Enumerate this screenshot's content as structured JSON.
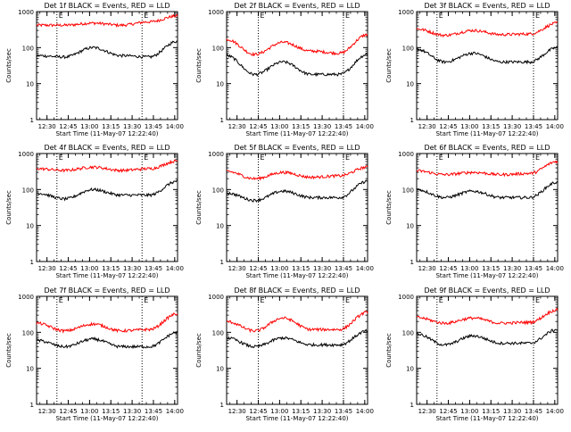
{
  "chart_data": [
    {
      "type": "line",
      "title": "Det 1f BLACK = Events, RED = LLD",
      "xlabel": "Start Time (11-May-07 12:22:40)",
      "ylabel": "Counts/sec",
      "xlim": [
        "12:22:40",
        "14:02"
      ],
      "ylim": [
        1,
        1000
      ],
      "yscale": "log",
      "xticks": [
        "12:30",
        "12:45",
        "13:00",
        "13:15",
        "13:30",
        "13:45",
        "14:00"
      ],
      "yticks": [
        "1",
        "10",
        "100",
        "1000"
      ],
      "marker_label": "E",
      "markers": [
        "12:37",
        "13:37"
      ],
      "series": [
        {
          "color": "#ff0000",
          "shape": [
            420,
            420,
            480,
            420,
            520,
            760
          ]
        },
        {
          "color": "#000000",
          "shape": [
            60,
            55,
            100,
            60,
            55,
            150
          ]
        }
      ]
    },
    {
      "type": "line",
      "title": "Det 2f BLACK = Events, RED = LLD",
      "xlabel": "Start Time (11-May-07 12:22:40)",
      "ylabel": "Counts/sec",
      "xlim": [
        "12:22:40",
        "14:02"
      ],
      "ylim": [
        1,
        1000
      ],
      "yscale": "log",
      "xticks": [
        "12:30",
        "12:45",
        "13:00",
        "13:15",
        "13:30",
        "13:45",
        "14:00"
      ],
      "yticks": [
        "1",
        "10",
        "100",
        "1000"
      ],
      "marker_label": "E",
      "markers": [
        "12:45",
        "13:45"
      ],
      "series": [
        {
          "color": "#ff0000",
          "shape": [
            170,
            65,
            140,
            80,
            70,
            230
          ]
        },
        {
          "color": "#000000",
          "shape": [
            60,
            18,
            40,
            18,
            18,
            65
          ]
        }
      ]
    },
    {
      "type": "line",
      "title": "Det 3f BLACK = Events, RED = LLD",
      "xlabel": "Start Time (11-May-07 12:22:40)",
      "ylabel": "Counts/sec",
      "xlim": [
        "12:22:40",
        "14:02"
      ],
      "ylim": [
        1,
        1000
      ],
      "yscale": "log",
      "xticks": [
        "12:30",
        "12:45",
        "13:00",
        "13:15",
        "13:30",
        "13:45",
        "14:00"
      ],
      "yticks": [
        "1",
        "10",
        "100",
        "1000"
      ],
      "marker_label": "E",
      "markers": [
        "12:37",
        "13:45"
      ],
      "series": [
        {
          "color": "#ff0000",
          "shape": [
            330,
            220,
            300,
            230,
            240,
            480
          ]
        },
        {
          "color": "#000000",
          "shape": [
            90,
            40,
            70,
            40,
            40,
            100
          ]
        }
      ]
    },
    {
      "type": "line",
      "title": "Det 4f BLACK = Events, RED = LLD",
      "xlabel": "Start Time (11-May-07 12:22:40)",
      "ylabel": "Counts/sec",
      "xlim": [
        "12:22:40",
        "14:02"
      ],
      "ylim": [
        1,
        1000
      ],
      "yscale": "log",
      "xticks": [
        "12:30",
        "12:45",
        "13:00",
        "13:15",
        "13:30",
        "13:45",
        "14:00"
      ],
      "yticks": [
        "1",
        "10",
        "100",
        "1000"
      ],
      "marker_label": "E",
      "markers": [
        "12:37",
        "13:37"
      ],
      "series": [
        {
          "color": "#ff0000",
          "shape": [
            380,
            340,
            420,
            340,
            380,
            620
          ]
        },
        {
          "color": "#000000",
          "shape": [
            80,
            55,
            100,
            70,
            70,
            170
          ]
        }
      ]
    },
    {
      "type": "line",
      "title": "Det 5f BLACK = Events, RED = LLD",
      "xlabel": "Start Time (11-May-07 12:22:40)",
      "ylabel": "Counts/sec",
      "xlim": [
        "12:22:40",
        "14:02"
      ],
      "ylim": [
        1,
        1000
      ],
      "yscale": "log",
      "xticks": [
        "12:30",
        "12:45",
        "13:00",
        "13:15",
        "13:30",
        "13:45",
        "14:00"
      ],
      "yticks": [
        "1",
        "10",
        "100",
        "1000"
      ],
      "marker_label": "E",
      "markers": [
        "12:45",
        "13:45"
      ],
      "series": [
        {
          "color": "#ff0000",
          "shape": [
            320,
            200,
            300,
            220,
            240,
            420
          ]
        },
        {
          "color": "#000000",
          "shape": [
            80,
            50,
            90,
            60,
            60,
            170
          ]
        }
      ]
    },
    {
      "type": "line",
      "title": "Det 6f BLACK = Events, RED = LLD",
      "xlabel": "Start Time (11-May-07 12:22:40)",
      "ylabel": "Counts/sec",
      "xlim": [
        "12:22:40",
        "14:02"
      ],
      "ylim": [
        1,
        1000
      ],
      "yscale": "log",
      "xticks": [
        "12:30",
        "12:45",
        "13:00",
        "13:15",
        "13:30",
        "13:45",
        "14:00"
      ],
      "yticks": [
        "1",
        "10",
        "100",
        "1000"
      ],
      "marker_label": "E",
      "markers": [
        "12:37",
        "13:45"
      ],
      "series": [
        {
          "color": "#ff0000",
          "shape": [
            330,
            260,
            300,
            260,
            280,
            600
          ]
        },
        {
          "color": "#000000",
          "shape": [
            100,
            60,
            90,
            60,
            60,
            160
          ]
        }
      ]
    },
    {
      "type": "line",
      "title": "Det 7f BLACK = Events, RED = LLD",
      "xlabel": "Start Time (11-May-07 12:22:40)",
      "ylabel": "Counts/sec",
      "xlim": [
        "12:22:40",
        "14:02"
      ],
      "ylim": [
        1,
        1000
      ],
      "yscale": "log",
      "xticks": [
        "12:30",
        "12:45",
        "13:00",
        "13:15",
        "13:30",
        "13:45",
        "14:00"
      ],
      "yticks": [
        "1",
        "10",
        "100",
        "1000"
      ],
      "marker_label": "E",
      "markers": [
        "12:37",
        "13:37"
      ],
      "series": [
        {
          "color": "#ff0000",
          "shape": [
            180,
            110,
            170,
            110,
            120,
            330
          ]
        },
        {
          "color": "#000000",
          "shape": [
            60,
            40,
            65,
            40,
            40,
            100
          ]
        }
      ]
    },
    {
      "type": "line",
      "title": "Det 8f BLACK = Events, RED = LLD",
      "xlabel": "Start Time (11-May-07 12:22:40)",
      "ylabel": "Counts/sec",
      "xlim": [
        "12:22:40",
        "14:02"
      ],
      "ylim": [
        1,
        1000
      ],
      "yscale": "log",
      "xticks": [
        "12:30",
        "12:45",
        "13:00",
        "13:15",
        "13:30",
        "13:45",
        "14:00"
      ],
      "yticks": [
        "1",
        "10",
        "100",
        "1000"
      ],
      "marker_label": "E",
      "markers": [
        "12:45",
        "13:45"
      ],
      "series": [
        {
          "color": "#ff0000",
          "shape": [
            200,
            110,
            250,
            120,
            120,
            360
          ]
        },
        {
          "color": "#000000",
          "shape": [
            70,
            40,
            70,
            45,
            45,
            110
          ]
        }
      ]
    },
    {
      "type": "line",
      "title": "Det 9f BLACK = Events, RED = LLD",
      "xlabel": "Start Time (11-May-07 12:22:40)",
      "ylabel": "Counts/sec",
      "xlim": [
        "12:22:40",
        "14:02"
      ],
      "ylim": [
        1,
        1000
      ],
      "yscale": "log",
      "xticks": [
        "12:30",
        "12:45",
        "13:00",
        "13:15",
        "13:30",
        "13:45",
        "14:00"
      ],
      "yticks": [
        "1",
        "10",
        "100",
        "1000"
      ],
      "marker_label": "E",
      "markers": [
        "12:37",
        "13:45"
      ],
      "series": [
        {
          "color": "#ff0000",
          "shape": [
            260,
            180,
            250,
            180,
            190,
            420
          ]
        },
        {
          "color": "#000000",
          "shape": [
            90,
            45,
            80,
            50,
            50,
            120
          ]
        }
      ]
    }
  ]
}
